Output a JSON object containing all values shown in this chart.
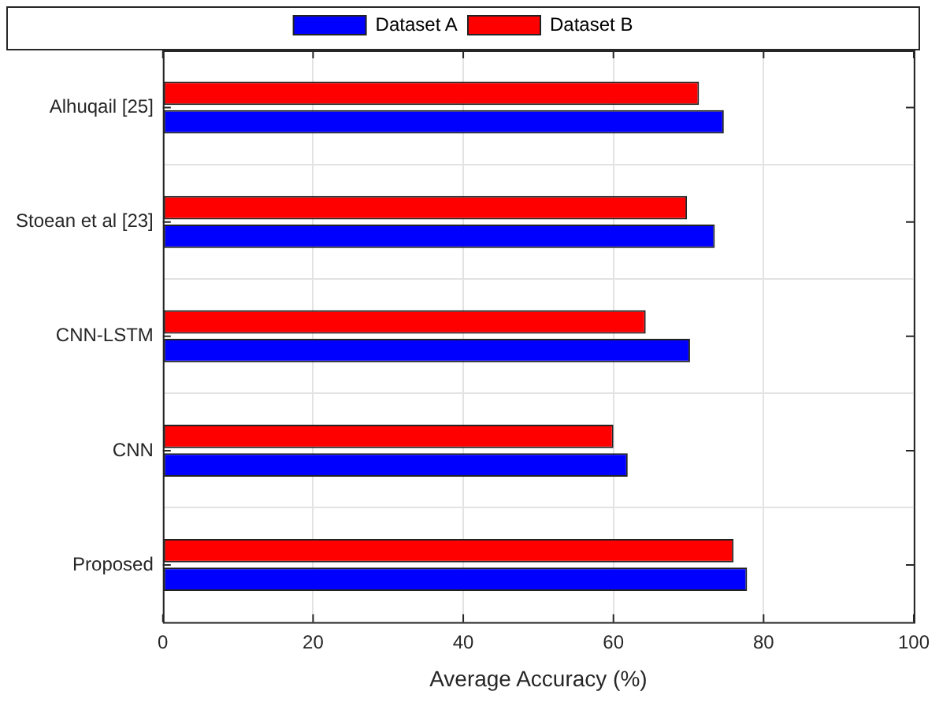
{
  "chart_data": {
    "type": "bar",
    "orientation": "horizontal",
    "xlabel": "Average Accuracy (%)",
    "categories": [
      "Alhuqail [25]",
      "Stoean et al [23]",
      "CNN-LSTM",
      "CNN",
      "Proposed"
    ],
    "series": [
      {
        "name": "Dataset A",
        "color": "#0000ff",
        "values": [
          74.7,
          73.5,
          70.2,
          61.9,
          77.8
        ]
      },
      {
        "name": "Dataset B",
        "color": "#ff0000",
        "values": [
          71.4,
          69.8,
          64.3,
          60.0,
          76.0
        ]
      }
    ],
    "xlim": [
      0,
      100
    ],
    "xticks": [
      0,
      20,
      40,
      60,
      80,
      100
    ],
    "grid": true,
    "legend": "top"
  }
}
